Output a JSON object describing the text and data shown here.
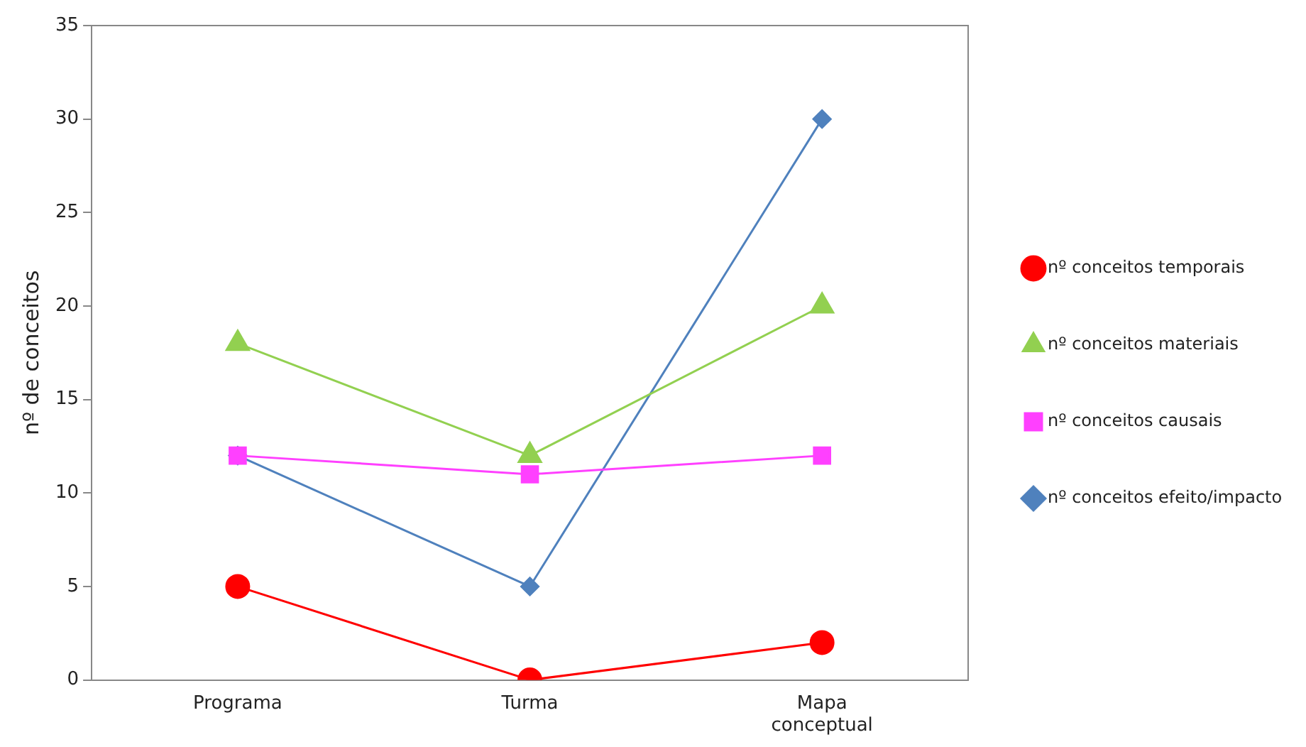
{
  "chart_data": {
    "type": "line",
    "ylabel": "nº de conceitos",
    "categories": [
      "Programa",
      "Turma",
      "Mapa conceptual"
    ],
    "series": [
      {
        "name": "nº conceitos temporais",
        "color": "#ff0000",
        "marker": "circle",
        "values": [
          5,
          0,
          2
        ]
      },
      {
        "name": "nº conceitos materiais",
        "color": "#92d050",
        "marker": "triangle",
        "values": [
          18,
          12,
          20
        ]
      },
      {
        "name": "nº conceitos causais",
        "color": "#ff40ff",
        "marker": "square",
        "values": [
          12,
          11,
          12
        ]
      },
      {
        "name": "nº conceitos efeito/impacto",
        "color": "#4f81bd",
        "marker": "diamond",
        "values": [
          12,
          5,
          30
        ]
      }
    ],
    "ylim": [
      0,
      35
    ],
    "yticks": [
      0,
      5,
      10,
      15,
      20,
      25,
      30,
      35
    ],
    "grid": false,
    "legend": "right"
  }
}
